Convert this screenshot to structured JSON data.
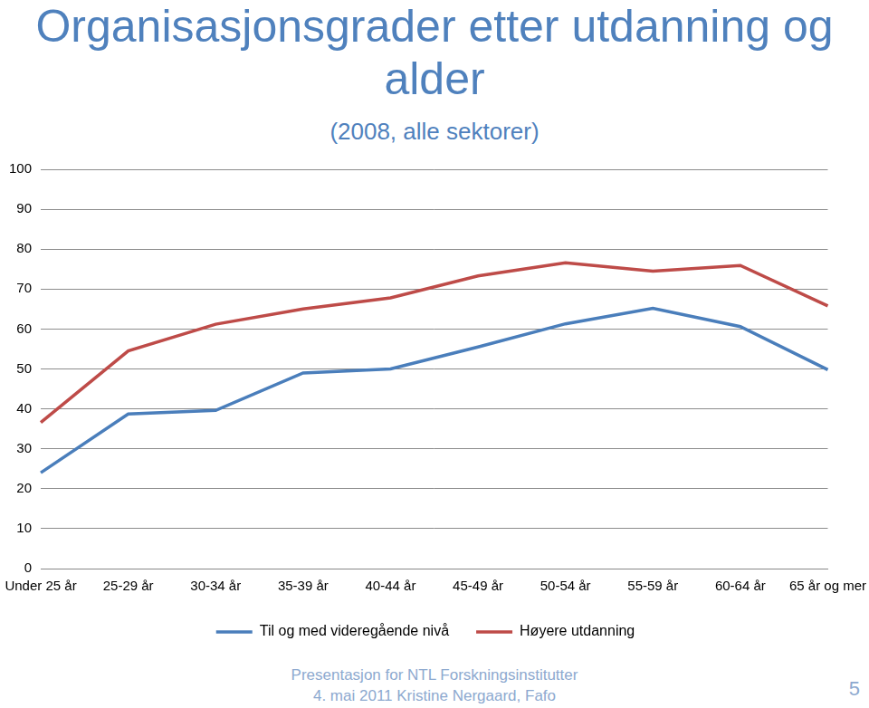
{
  "chart_data": {
    "type": "line",
    "title": "Organisasjonsgrader etter utdanning og alder",
    "subtitle": "(2008, alle sektorer)",
    "annotations": [
      "Presentasjon for NTL Forskningsinstitutter",
      "4. mai 2011  Kristine Nergaard, Fafo",
      "5"
    ],
    "categories": [
      "Under 25 år",
      "25-29 år",
      "30-34 år",
      "35-39 år",
      "40-44 år",
      "45-49 år",
      "50-54 år",
      "55-59 år",
      "60-64 år",
      "65 år og mer"
    ],
    "series": [
      {
        "name": "Til og med videregående nivå",
        "color": "#4a7ebb",
        "values": [
          24,
          38.7,
          39.6,
          49,
          50,
          55.5,
          61.3,
          65.2,
          60.6,
          49.8
        ]
      },
      {
        "name": "Høyere utdanning",
        "color": "#be4b48",
        "values": [
          36.6,
          54.5,
          61.2,
          65,
          67.8,
          73.3,
          76.6,
          74.5,
          75.9,
          65.8
        ]
      }
    ],
    "ylim": [
      0,
      100
    ],
    "yticks": [
      0,
      10,
      20,
      30,
      40,
      50,
      60,
      70,
      80,
      90,
      100
    ],
    "grid": true,
    "legend": "bottom"
  }
}
